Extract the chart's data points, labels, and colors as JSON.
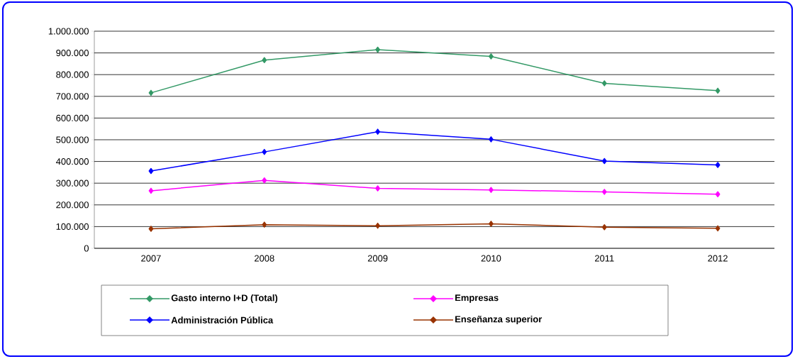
{
  "chart_data": {
    "type": "line",
    "categories": [
      "2007",
      "2008",
      "2009",
      "2010",
      "2011",
      "2012"
    ],
    "series": [
      {
        "name": "Gasto interno I+D (Total)",
        "color": "#339966",
        "values": [
          716000,
          867000,
          915000,
          884000,
          760000,
          726000
        ]
      },
      {
        "name": "Empresas",
        "color": "#ff00ff",
        "values": [
          265000,
          313000,
          276000,
          269000,
          260000,
          249000
        ]
      },
      {
        "name": "Administración Pública",
        "color": "#0000ff",
        "values": [
          356000,
          444000,
          537000,
          502000,
          402000,
          384000
        ]
      },
      {
        "name": "Enseñanza superior",
        "color": "#993300",
        "values": [
          90000,
          109000,
          104000,
          113000,
          97000,
          92000
        ]
      }
    ],
    "ylim": [
      0,
      1000000
    ],
    "yticks": [
      {
        "value": 0,
        "label": "0"
      },
      {
        "value": 100000,
        "label": "100.000"
      },
      {
        "value": 200000,
        "label": "200.000"
      },
      {
        "value": 300000,
        "label": "300.000"
      },
      {
        "value": 400000,
        "label": "400.000"
      },
      {
        "value": 500000,
        "label": "500.000"
      },
      {
        "value": 600000,
        "label": "600.000"
      },
      {
        "value": 700000,
        "label": "700.000"
      },
      {
        "value": 800000,
        "label": "800.000"
      },
      {
        "value": 900000,
        "label": "900.000"
      },
      {
        "value": 1000000,
        "label": "1.000.000"
      }
    ],
    "grid": "y",
    "legend": "bottom",
    "marker": "diamond",
    "line_style": "solid"
  }
}
